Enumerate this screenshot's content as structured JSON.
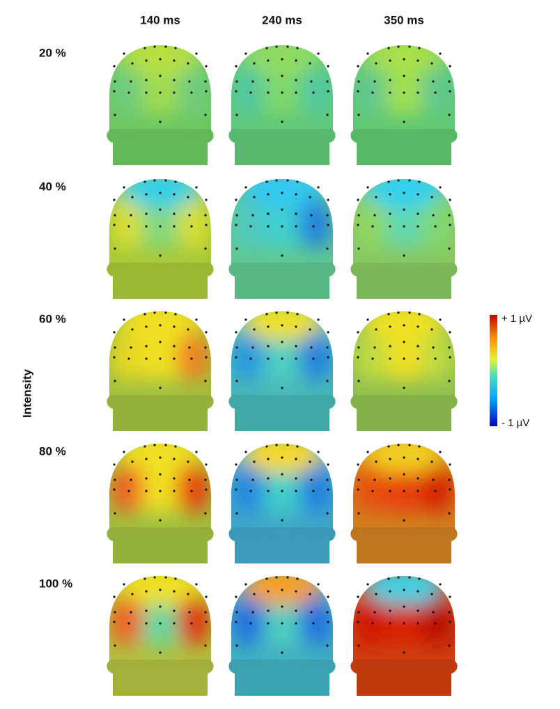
{
  "columns": [
    "140 ms",
    "240 ms",
    "350 ms"
  ],
  "rows": [
    "20 %",
    "40 %",
    "60 %",
    "80 %",
    "100 %"
  ],
  "y_label": "Intensity",
  "colorbar": {
    "max_label": "+ 1 µV",
    "min_label": "- 1 µV"
  }
}
